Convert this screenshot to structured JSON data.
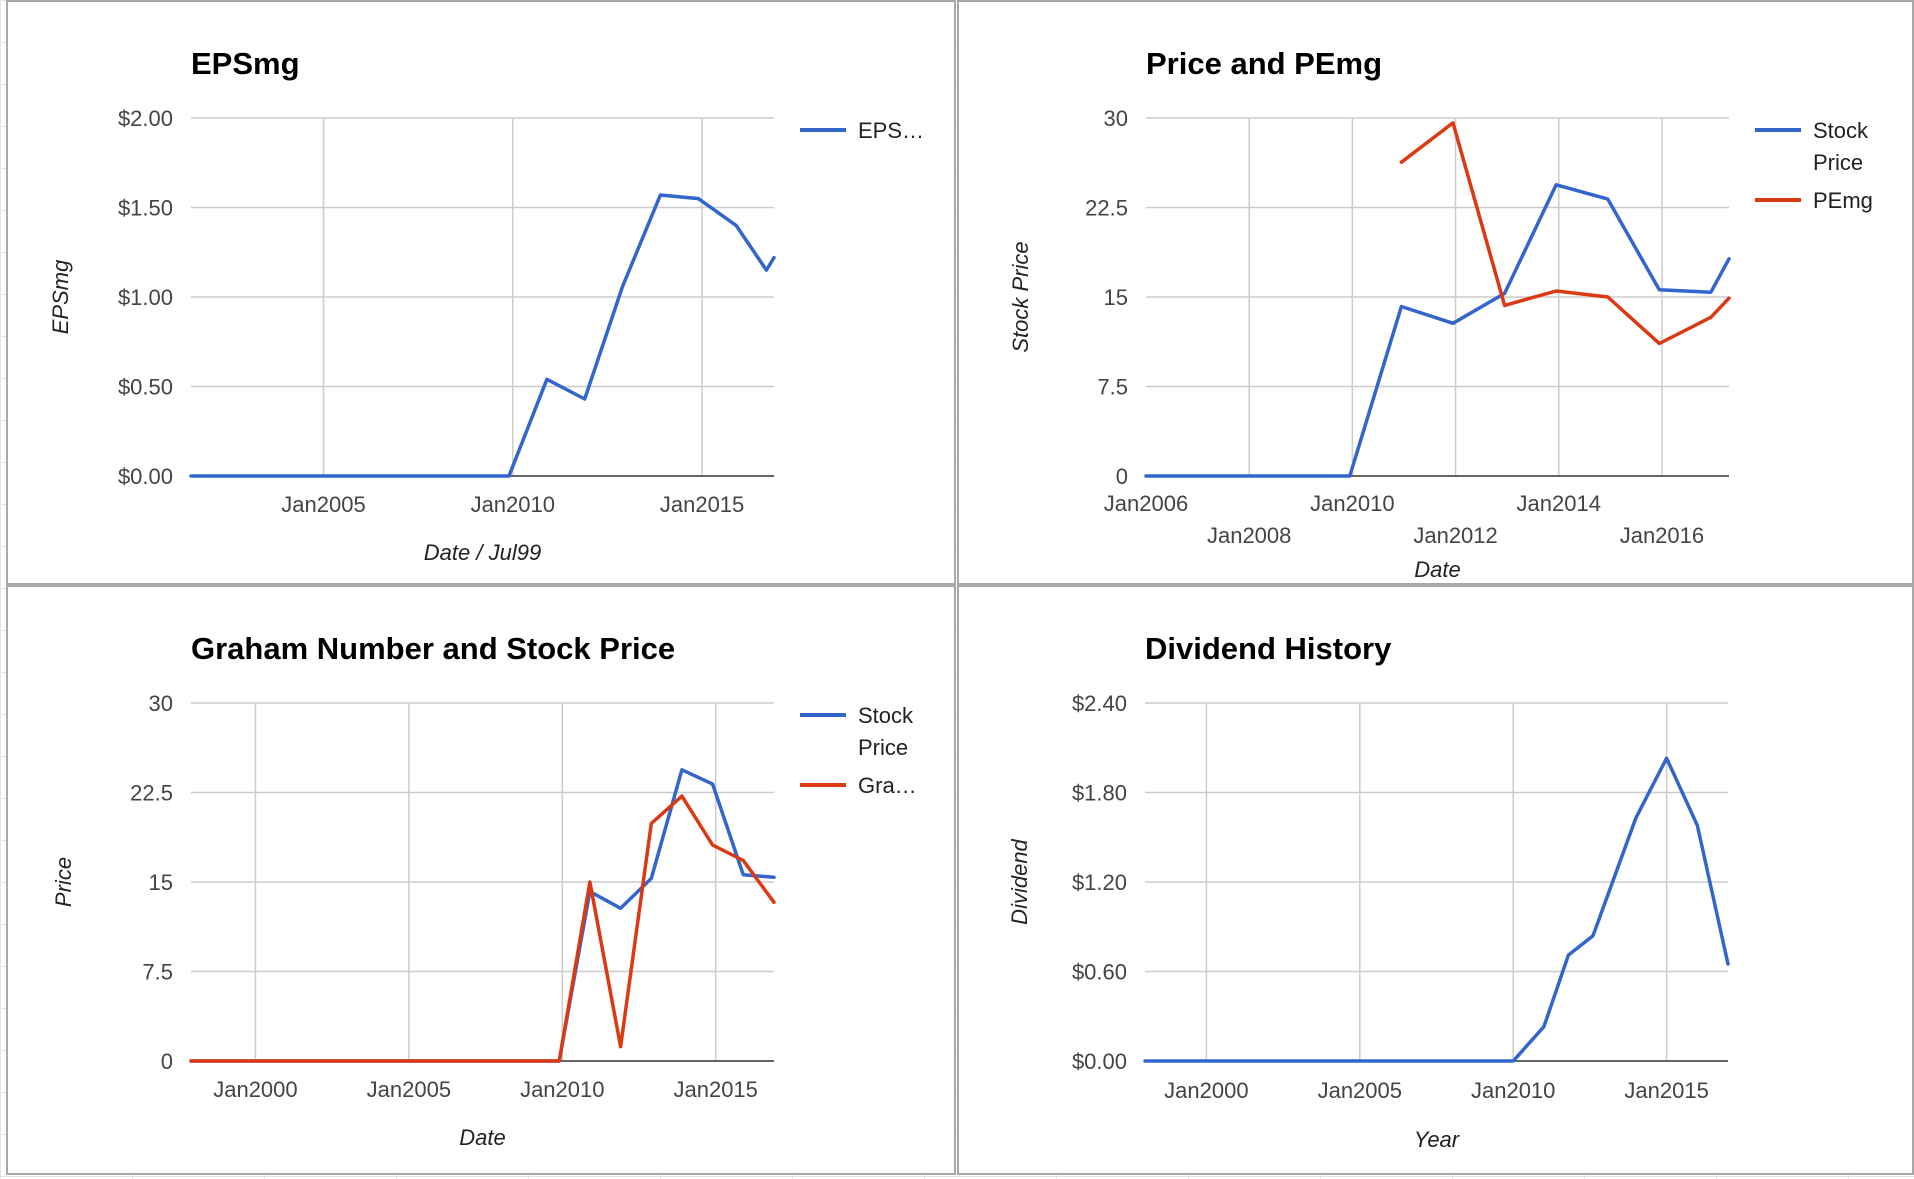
{
  "chart_data": [
    {
      "type": "line",
      "title": "EPSmg",
      "xlabel": "Date / Jul99",
      "ylabel": "EPSmg",
      "ylim": [
        0,
        2
      ],
      "xlim": [
        2001.5,
        2016.9
      ],
      "yticks": [
        "$0.00",
        "$0.50",
        "$1.00",
        "$1.50",
        "$2.00"
      ],
      "xticks": [
        {
          "label": "Jan2005",
          "x": 2005
        },
        {
          "label": "Jan2010",
          "x": 2010
        },
        {
          "label": "Jan2015",
          "x": 2015
        }
      ],
      "legend_position": "right",
      "series": [
        {
          "name": "EPS…",
          "color": "#3366cc",
          "points": [
            [
              2001.5,
              0
            ],
            [
              2009.9,
              0
            ],
            [
              2010.9,
              0.54
            ],
            [
              2011.9,
              0.43
            ],
            [
              2012.9,
              1.06
            ],
            [
              2013.9,
              1.57
            ],
            [
              2014.9,
              1.55
            ],
            [
              2015.9,
              1.4
            ],
            [
              2016.7,
              1.15
            ],
            [
              2016.9,
              1.22
            ]
          ]
        }
      ]
    },
    {
      "type": "line",
      "title": "Price and PEmg",
      "xlabel": "Date",
      "ylabel": "Stock Price",
      "ylim": [
        0,
        30
      ],
      "xlim": [
        2006,
        2017.3
      ],
      "yticks": [
        "0",
        "7.5",
        "15",
        "22.5",
        "30"
      ],
      "xticks": [
        {
          "label": "Jan2006",
          "x": 2006,
          "row": 1
        },
        {
          "label": "Jan2008",
          "x": 2008,
          "row": 2
        },
        {
          "label": "Jan2010",
          "x": 2010,
          "row": 1
        },
        {
          "label": "Jan2012",
          "x": 2012,
          "row": 2
        },
        {
          "label": "Jan2014",
          "x": 2014,
          "row": 1
        },
        {
          "label": "Jan2016",
          "x": 2016,
          "row": 2
        }
      ],
      "legend_position": "right",
      "series": [
        {
          "name": "Stock Price",
          "legend_lines": [
            "Stock",
            "Price"
          ],
          "color": "#3366cc",
          "points": [
            [
              2006,
              0
            ],
            [
              2009.95,
              0
            ],
            [
              2010.95,
              14.2
            ],
            [
              2011.95,
              12.8
            ],
            [
              2012.95,
              15.3
            ],
            [
              2013.95,
              24.4
            ],
            [
              2014.95,
              23.2
            ],
            [
              2015.95,
              15.6
            ],
            [
              2016.95,
              15.4
            ],
            [
              2017.3,
              18.2
            ]
          ]
        },
        {
          "name": "PEmg",
          "legend_lines": [
            "PEmg"
          ],
          "color": "#dc3912",
          "points": [
            [
              2010.95,
              26.3
            ],
            [
              2011.95,
              29.6
            ],
            [
              2012.95,
              14.3
            ],
            [
              2013.95,
              15.5
            ],
            [
              2014.95,
              15.0
            ],
            [
              2015.95,
              11.1
            ],
            [
              2016.95,
              13.3
            ],
            [
              2017.3,
              14.9
            ]
          ]
        }
      ]
    },
    {
      "type": "line",
      "title": "Graham Number and Stock Price",
      "xlabel": "Date",
      "ylabel": "Price",
      "ylim": [
        0,
        30
      ],
      "xlim": [
        1997.9,
        2016.9
      ],
      "yticks": [
        "0",
        "7.5",
        "15",
        "22.5",
        "30"
      ],
      "xticks": [
        {
          "label": "Jan2000",
          "x": 2000
        },
        {
          "label": "Jan2005",
          "x": 2005
        },
        {
          "label": "Jan2010",
          "x": 2010
        },
        {
          "label": "Jan2015",
          "x": 2015
        }
      ],
      "legend_position": "right",
      "series": [
        {
          "name": "Stock Price",
          "legend_lines": [
            "Stock",
            "Price"
          ],
          "color": "#3366cc",
          "points": [
            [
              1997.9,
              0
            ],
            [
              2009.9,
              0
            ],
            [
              2010.9,
              14.2
            ],
            [
              2011.9,
              12.8
            ],
            [
              2012.9,
              15.3
            ],
            [
              2013.9,
              24.4
            ],
            [
              2014.9,
              23.2
            ],
            [
              2015.9,
              15.6
            ],
            [
              2016.9,
              15.4
            ]
          ]
        },
        {
          "name": "Gra…",
          "legend_lines": [
            "Gra…"
          ],
          "color": "#dc3912",
          "points": [
            [
              1997.9,
              0
            ],
            [
              2009.9,
              0
            ],
            [
              2010.9,
              15.0
            ],
            [
              2011.9,
              1.2
            ],
            [
              2012.9,
              19.9
            ],
            [
              2013.9,
              22.2
            ],
            [
              2014.9,
              18.1
            ],
            [
              2015.9,
              16.8
            ],
            [
              2016.9,
              13.3
            ]
          ]
        }
      ]
    },
    {
      "type": "line",
      "title": "Dividend History",
      "xlabel": "Year",
      "ylabel": "Dividend",
      "ylim": [
        0,
        2.4
      ],
      "xlim": [
        1998,
        2017
      ],
      "yticks": [
        "$0.00",
        "$0.60",
        "$1.20",
        "$1.80",
        "$2.40"
      ],
      "xticks": [
        {
          "label": "Jan2000",
          "x": 2000
        },
        {
          "label": "Jan2005",
          "x": 2005
        },
        {
          "label": "Jan2010",
          "x": 2010
        },
        {
          "label": "Jan2015",
          "x": 2015
        }
      ],
      "legend_position": "none",
      "series": [
        {
          "name": "",
          "color": "#3366cc",
          "points": [
            [
              1998,
              0
            ],
            [
              2010,
              0
            ],
            [
              2011,
              0.23
            ],
            [
              2011.8,
              0.71
            ],
            [
              2012.6,
              0.84
            ],
            [
              2014,
              1.63
            ],
            [
              2015,
              2.03
            ],
            [
              2016,
              1.58
            ],
            [
              2017,
              0.65
            ]
          ]
        }
      ]
    }
  ]
}
